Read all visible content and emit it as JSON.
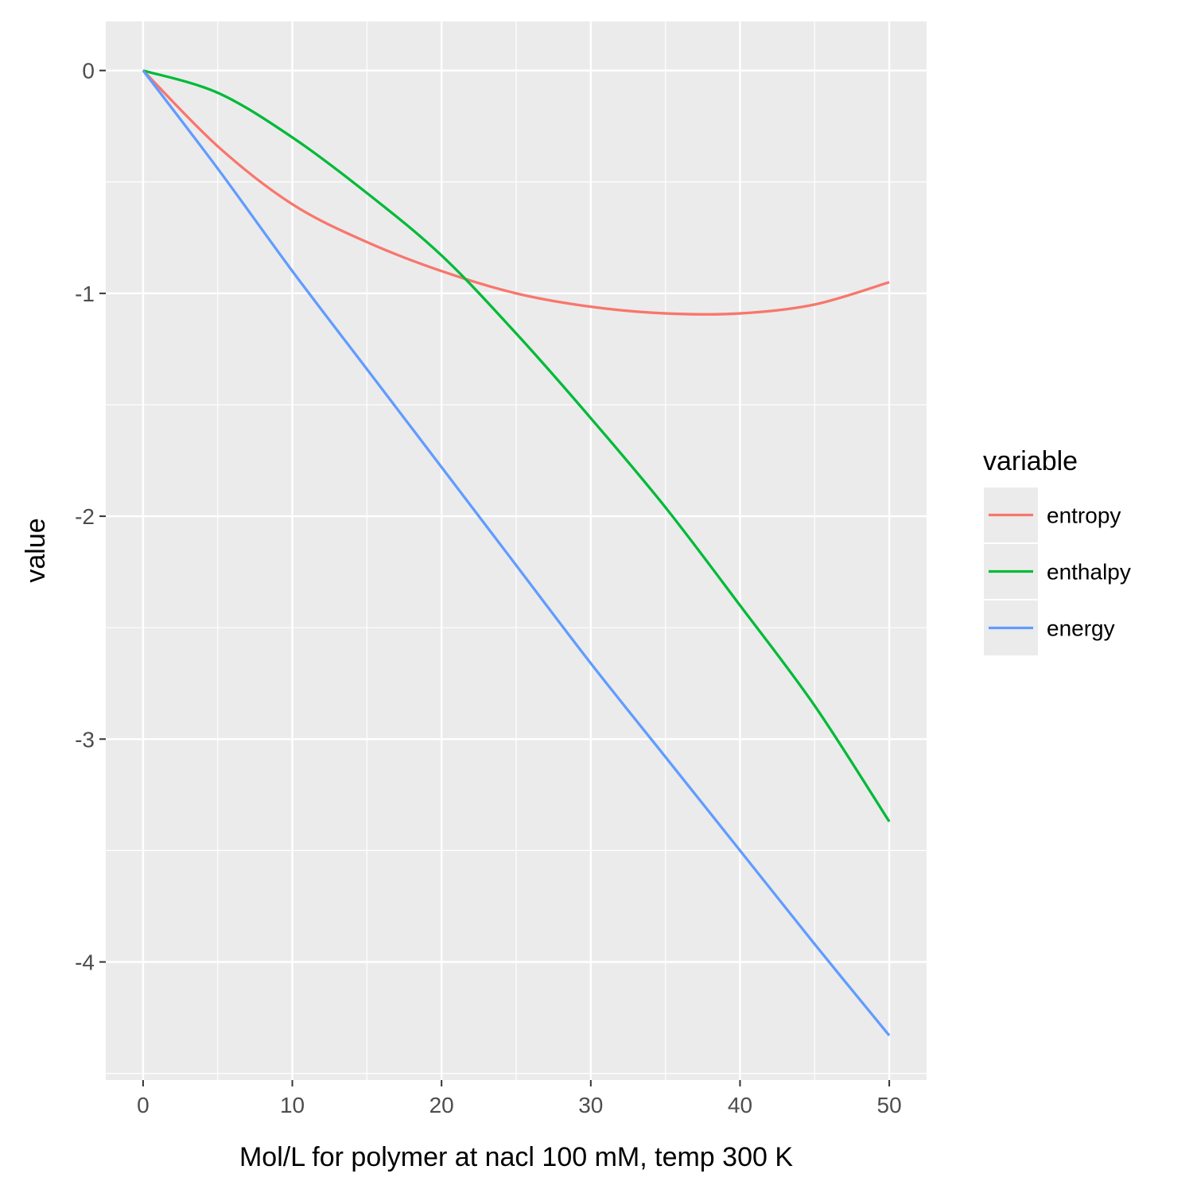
{
  "chart_data": {
    "type": "line",
    "xlabel": "Mol/L for polymer at nacl 100 mM, temp 300 K",
    "ylabel": "value",
    "xlim": [
      -2.5,
      52.5
    ],
    "ylim": [
      -4.53,
      0.22
    ],
    "x_ticks": [
      0,
      10,
      20,
      30,
      40,
      50
    ],
    "x_tick_labels": [
      "0",
      "10",
      "20",
      "30",
      "40",
      "50"
    ],
    "y_ticks": [
      0,
      -1,
      -2,
      -3,
      -4
    ],
    "y_tick_labels": [
      "0",
      "-1",
      "-2",
      "-3",
      "-4"
    ],
    "grid": true,
    "legend": {
      "title": "variable",
      "position": "right"
    },
    "series": [
      {
        "name": "entropy",
        "color": "#F8766D",
        "x": [
          0,
          5,
          10,
          15,
          20,
          25,
          30,
          35,
          40,
          45,
          50
        ],
        "y": [
          0,
          -0.34,
          -0.6,
          -0.77,
          -0.9,
          -1.0,
          -1.06,
          -1.09,
          -1.09,
          -1.05,
          -0.95
        ]
      },
      {
        "name": "enthalpy",
        "color": "#00BA38",
        "x": [
          0,
          5,
          10,
          15,
          20,
          25,
          30,
          35,
          40,
          45,
          50
        ],
        "y": [
          0,
          -0.1,
          -0.3,
          -0.55,
          -0.83,
          -1.18,
          -1.56,
          -1.96,
          -2.4,
          -2.85,
          -3.37
        ]
      },
      {
        "name": "energy",
        "color": "#619CFF",
        "x": [
          0,
          5,
          10,
          15,
          20,
          25,
          30,
          35,
          40,
          45,
          50
        ],
        "y": [
          0,
          -0.44,
          -0.9,
          -1.34,
          -1.78,
          -2.22,
          -2.66,
          -3.08,
          -3.5,
          -3.92,
          -4.33
        ]
      }
    ]
  }
}
